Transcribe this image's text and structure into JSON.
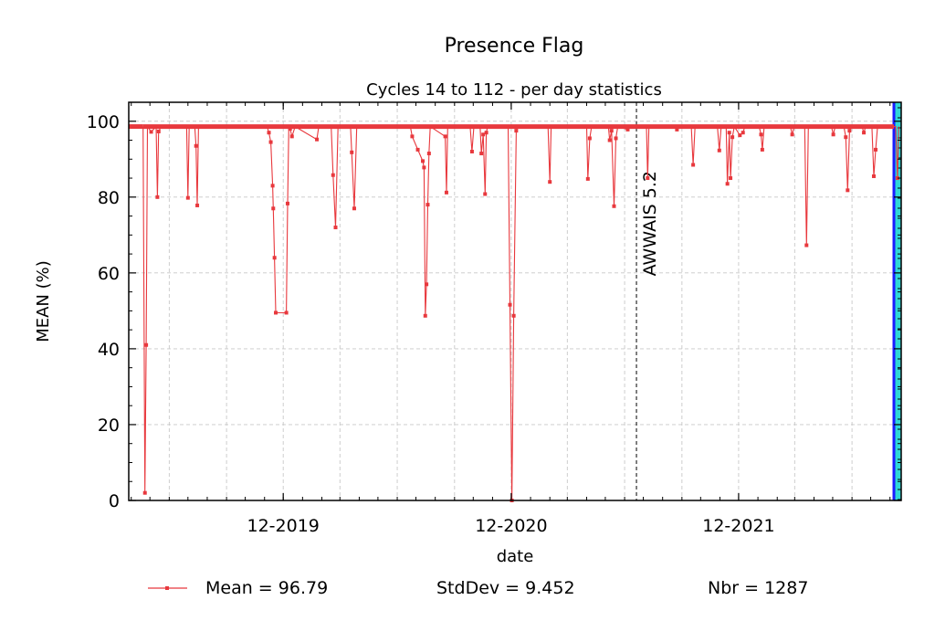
{
  "chart_data": {
    "type": "line",
    "title": "Presence Flag",
    "subtitle": "Cycles 14 to 112 - per day statistics",
    "xlabel": "date",
    "ylabel": "MEAN (%)",
    "ylim": [
      0,
      105
    ],
    "yticks": [
      0,
      20,
      40,
      60,
      80,
      100
    ],
    "xlim": [
      "2019-03-28",
      "2022-08-19"
    ],
    "xticks": [
      {
        "date": "2019-12-01",
        "label": "12-2019"
      },
      {
        "date": "2020-12-01",
        "label": "12-2020"
      },
      {
        "date": "2021-12-01",
        "label": "12-2021"
      }
    ],
    "x_minor_gridlines": [
      "2019-06-01",
      "2019-09-01",
      "2020-03-01",
      "2020-06-01",
      "2020-09-01",
      "2021-03-01",
      "2021-06-01",
      "2021-09-01",
      "2022-03-01",
      "2022-06-01"
    ],
    "grid": true,
    "baseline": 98.6,
    "series": [
      {
        "name": "Mean",
        "color": "#e8383d",
        "marker": "square",
        "points": [
          [
            "2019-04-20",
            98.6
          ],
          [
            "2019-04-23",
            2.0
          ],
          [
            "2019-04-25",
            41.0
          ],
          [
            "2019-04-27",
            98.6
          ],
          [
            "2019-05-03",
            97.2
          ],
          [
            "2019-05-11",
            98.6
          ],
          [
            "2019-05-13",
            80.0
          ],
          [
            "2019-05-15",
            97.3
          ],
          [
            "2019-05-19",
            98.6
          ],
          [
            "2019-06-29",
            98.6
          ],
          [
            "2019-07-01",
            79.8
          ],
          [
            "2019-07-03",
            98.6
          ],
          [
            "2019-07-12",
            98.6
          ],
          [
            "2019-07-14",
            93.5
          ],
          [
            "2019-07-16",
            77.8
          ],
          [
            "2019-07-18",
            98.6
          ],
          [
            "2019-11-05",
            98.6
          ],
          [
            "2019-11-08",
            97.0
          ],
          [
            "2019-11-11",
            94.5
          ],
          [
            "2019-11-14",
            83.0
          ],
          [
            "2019-11-15",
            77.0
          ],
          [
            "2019-11-17",
            64.0
          ],
          [
            "2019-11-19",
            49.5
          ],
          [
            "2019-12-06",
            49.5
          ],
          [
            "2019-12-08",
            78.3
          ],
          [
            "2019-12-10",
            98.6
          ],
          [
            "2019-12-12",
            98.0
          ],
          [
            "2019-12-15",
            96.0
          ],
          [
            "2019-12-20",
            98.6
          ],
          [
            "2020-01-24",
            95.2
          ],
          [
            "2020-01-27",
            98.6
          ],
          [
            "2020-02-16",
            98.6
          ],
          [
            "2020-02-19",
            85.8
          ],
          [
            "2020-02-23",
            72.0
          ],
          [
            "2020-02-27",
            98.6
          ],
          [
            "2020-03-18",
            98.6
          ],
          [
            "2020-03-20",
            91.8
          ],
          [
            "2020-03-24",
            77.0
          ],
          [
            "2020-03-28",
            98.6
          ],
          [
            "2020-06-22",
            98.6
          ],
          [
            "2020-06-25",
            96.0
          ],
          [
            "2020-07-04",
            92.5
          ],
          [
            "2020-07-12",
            89.5
          ],
          [
            "2020-07-14",
            87.8
          ],
          [
            "2020-07-16",
            48.7
          ],
          [
            "2020-07-18",
            57.0
          ],
          [
            "2020-07-20",
            78.0
          ],
          [
            "2020-07-22",
            91.5
          ],
          [
            "2020-07-24",
            98.6
          ],
          [
            "2020-08-17",
            96.0
          ],
          [
            "2020-08-19",
            81.2
          ],
          [
            "2020-08-21",
            98.6
          ],
          [
            "2020-09-26",
            98.6
          ],
          [
            "2020-09-29",
            92.0
          ],
          [
            "2020-10-02",
            98.6
          ],
          [
            "2020-10-12",
            98.6
          ],
          [
            "2020-10-14",
            91.5
          ],
          [
            "2020-10-17",
            96.5
          ],
          [
            "2020-10-20",
            80.8
          ],
          [
            "2020-10-22",
            97.0
          ],
          [
            "2020-10-24",
            98.6
          ],
          [
            "2020-11-26",
            98.6
          ],
          [
            "2020-11-29",
            51.6
          ],
          [
            "2020-12-02",
            0.0
          ],
          [
            "2020-12-05",
            48.7
          ],
          [
            "2020-12-09",
            97.5
          ],
          [
            "2020-12-12",
            98.6
          ],
          [
            "2021-01-29",
            98.6
          ],
          [
            "2021-02-01",
            84.0
          ],
          [
            "2021-02-03",
            98.6
          ],
          [
            "2021-04-01",
            98.6
          ],
          [
            "2021-04-03",
            84.8
          ],
          [
            "2021-04-06",
            95.5
          ],
          [
            "2021-04-09",
            98.6
          ],
          [
            "2021-05-06",
            98.6
          ],
          [
            "2021-05-08",
            95.0
          ],
          [
            "2021-05-11",
            97.5
          ],
          [
            "2021-05-15",
            77.6
          ],
          [
            "2021-05-18",
            95.5
          ],
          [
            "2021-05-21",
            98.6
          ],
          [
            "2021-06-06",
            97.8
          ],
          [
            "2021-06-09",
            98.6
          ],
          [
            "2021-07-06",
            98.6
          ],
          [
            "2021-07-08",
            85.0
          ],
          [
            "2021-07-10",
            98.6
          ],
          [
            "2021-08-21",
            98.6
          ],
          [
            "2021-08-24",
            97.8
          ],
          [
            "2021-08-27",
            98.6
          ],
          [
            "2021-09-16",
            98.6
          ],
          [
            "2021-09-19",
            88.5
          ],
          [
            "2021-09-22",
            98.6
          ],
          [
            "2021-10-28",
            98.6
          ],
          [
            "2021-10-31",
            92.3
          ],
          [
            "2021-11-03",
            98.6
          ],
          [
            "2021-11-11",
            98.6
          ],
          [
            "2021-11-13",
            83.5
          ],
          [
            "2021-11-16",
            97.0
          ],
          [
            "2021-11-18",
            85.0
          ],
          [
            "2021-11-21",
            95.8
          ],
          [
            "2021-11-24",
            98.6
          ],
          [
            "2021-12-03",
            96.3
          ],
          [
            "2021-12-08",
            97.0
          ],
          [
            "2021-12-11",
            98.6
          ],
          [
            "2022-01-03",
            98.6
          ],
          [
            "2022-01-06",
            96.5
          ],
          [
            "2022-01-08",
            92.5
          ],
          [
            "2022-01-11",
            98.6
          ],
          [
            "2022-02-22",
            98.6
          ],
          [
            "2022-02-25",
            96.5
          ],
          [
            "2022-02-28",
            98.6
          ],
          [
            "2022-03-17",
            98.6
          ],
          [
            "2022-03-20",
            67.3
          ],
          [
            "2022-03-23",
            98.6
          ],
          [
            "2022-04-29",
            98.6
          ],
          [
            "2022-05-02",
            96.5
          ],
          [
            "2022-05-05",
            98.6
          ],
          [
            "2022-05-19",
            98.6
          ],
          [
            "2022-05-22",
            95.8
          ],
          [
            "2022-05-25",
            81.8
          ],
          [
            "2022-05-28",
            97.5
          ],
          [
            "2022-05-31",
            98.6
          ],
          [
            "2022-06-17",
            98.6
          ],
          [
            "2022-06-20",
            97.0
          ],
          [
            "2022-06-23",
            98.6
          ],
          [
            "2022-07-03",
            98.6
          ],
          [
            "2022-07-06",
            85.5
          ],
          [
            "2022-07-09",
            92.5
          ],
          [
            "2022-07-12",
            98.6
          ],
          [
            "2022-08-10",
            98.6
          ],
          [
            "2022-08-13",
            85.0
          ],
          [
            "2022-08-15",
            98.6
          ]
        ]
      }
    ],
    "annotations": [
      {
        "text": "AWWAIS 5.2",
        "date": "2021-06-20",
        "style": "dashed-vertical-line"
      }
    ],
    "highlight_band": {
      "fill": "#2fd6d6",
      "border": "#1a1aff"
    },
    "legend": {
      "placement": "bottom",
      "entries": [
        "Mean = 96.79",
        "StdDev = 9.452",
        "Nbr = 1287"
      ]
    }
  }
}
